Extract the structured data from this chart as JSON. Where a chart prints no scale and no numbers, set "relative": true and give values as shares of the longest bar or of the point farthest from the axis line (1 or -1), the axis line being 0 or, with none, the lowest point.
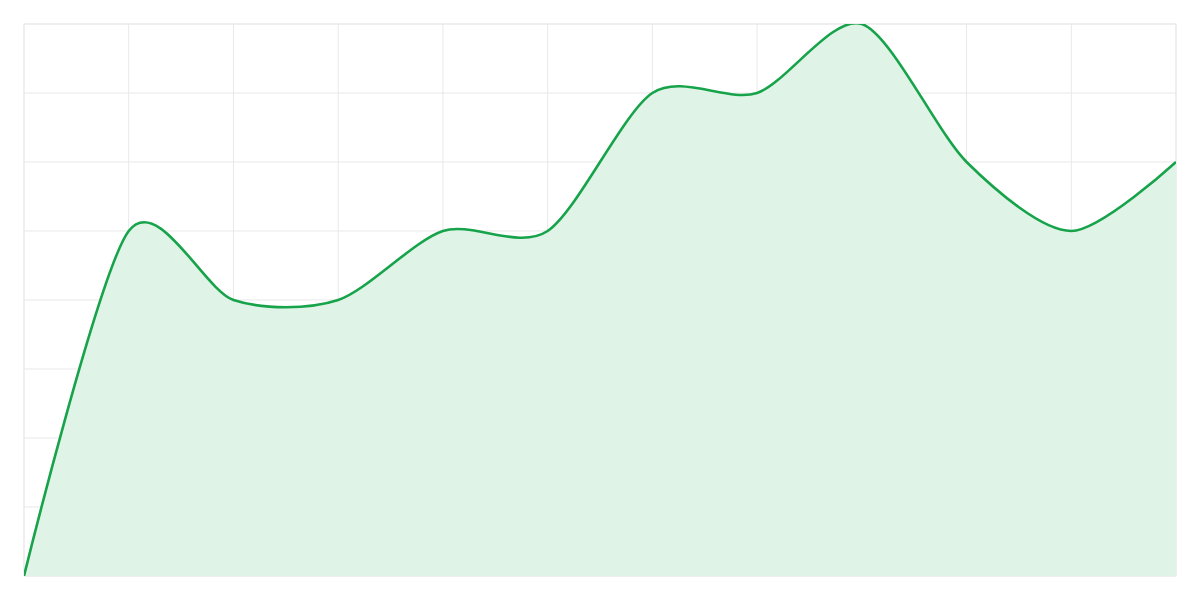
{
  "chart_data": {
    "type": "area",
    "relative": true,
    "grid": true,
    "color": "#16a34a",
    "categories": [
      null,
      null,
      null,
      null,
      null,
      null,
      null,
      null,
      null,
      null,
      null,
      null
    ],
    "values": [
      0,
      0.625,
      0.5,
      0.5,
      0.625,
      0.625,
      0.875,
      0.875,
      1,
      0.75,
      0.625,
      0.75
    ]
  }
}
